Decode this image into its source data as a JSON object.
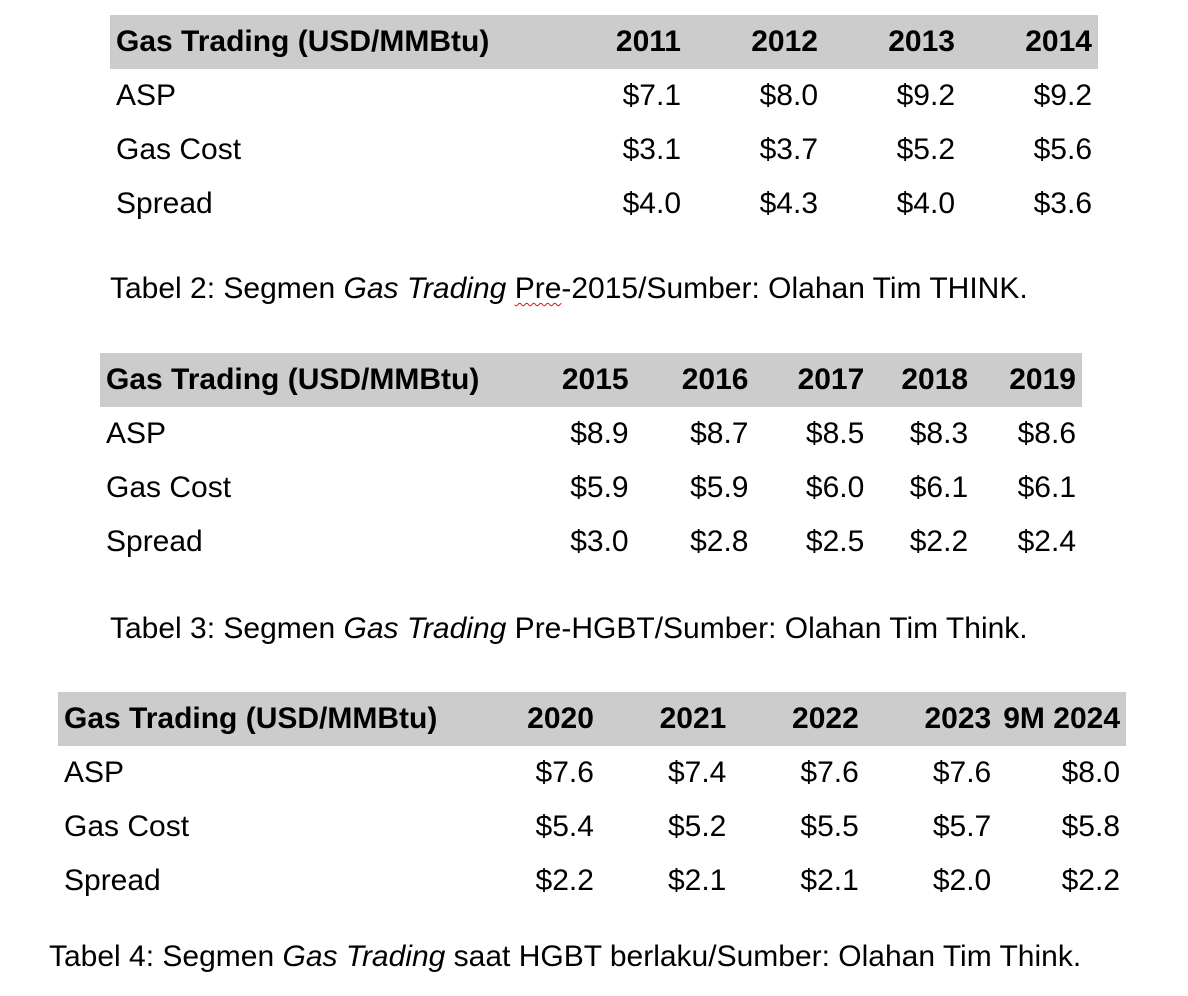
{
  "tables": [
    {
      "header": [
        "Gas Trading (USD/MMBtu)",
        "2011",
        "2012",
        "2013",
        "2014"
      ],
      "rows": [
        [
          "ASP",
          "$7.1",
          "$8.0",
          "$9.2",
          "$9.2"
        ],
        [
          "Gas Cost",
          "$3.1",
          "$3.7",
          "$5.2",
          "$5.6"
        ],
        [
          "Spread",
          "$4.0",
          "$4.3",
          "$4.0",
          "$3.6"
        ]
      ],
      "caption": {
        "before": "Tabel 2: Segmen ",
        "italic": "Gas Trading",
        "flagged": "Pre",
        "after": "-2015/Sumber: Olahan Tim THINK."
      }
    },
    {
      "header": [
        "Gas Trading (USD/MMBtu)",
        "2015",
        "2016",
        "2017",
        "2018",
        "2019"
      ],
      "rows": [
        [
          "ASP",
          "$8.9",
          "$8.7",
          "$8.5",
          "$8.3",
          "$8.6"
        ],
        [
          "Gas Cost",
          "$5.9",
          "$5.9",
          "$6.0",
          "$6.1",
          "$6.1"
        ],
        [
          "Spread",
          "$3.0",
          "$2.8",
          "$2.5",
          "$2.2",
          "$2.4"
        ]
      ],
      "caption": {
        "before": "Tabel 3: Segmen ",
        "italic": "Gas Trading",
        "after": " Pre-HGBT/Sumber: Olahan Tim Think."
      }
    },
    {
      "header": [
        "Gas Trading (USD/MMBtu)",
        "2020",
        "2021",
        "2022",
        "2023",
        "9M 2024"
      ],
      "rows": [
        [
          "ASP",
          "$7.6",
          "$7.4",
          "$7.6",
          "$7.6",
          "$8.0"
        ],
        [
          "Gas Cost",
          "$5.4",
          "$5.2",
          "$5.5",
          "$5.7",
          "$5.8"
        ],
        [
          "Spread",
          "$2.2",
          "$2.1",
          "$2.1",
          "$2.0",
          "$2.2"
        ]
      ],
      "caption": {
        "before": "Tabel 4: Segmen ",
        "italic": "Gas Trading",
        "after": " saat HGBT berlaku/Sumber: Olahan Tim Think."
      }
    }
  ]
}
